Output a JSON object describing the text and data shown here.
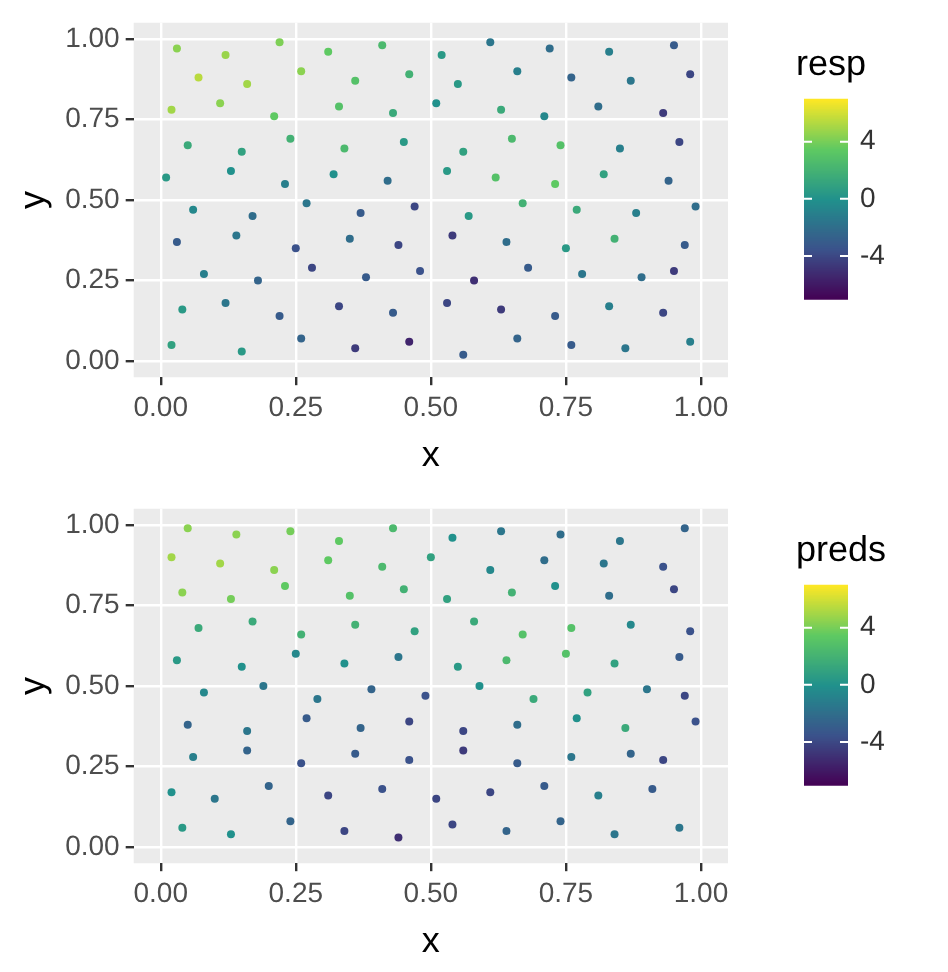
{
  "chart_data": [
    {
      "type": "scatter",
      "xlabel": "x",
      "ylabel": "y",
      "clabel": "resp",
      "marker": "circle",
      "grid": true,
      "xlim": [
        -0.05,
        1.05
      ],
      "ylim": [
        -0.05,
        1.05
      ],
      "xticks": [
        {
          "value": 0,
          "label": "0.00"
        },
        {
          "value": 0.25,
          "label": "0.25"
        },
        {
          "value": 0.5,
          "label": "0.50"
        },
        {
          "value": 0.75,
          "label": "0.75"
        },
        {
          "value": 1,
          "label": "1.00"
        }
      ],
      "yticks": [
        {
          "value": 0,
          "label": "0.00"
        },
        {
          "value": 0.25,
          "label": "0.25"
        },
        {
          "value": 0.5,
          "label": "0.50"
        },
        {
          "value": 0.75,
          "label": "0.75"
        },
        {
          "value": 1,
          "label": "1.00"
        }
      ],
      "clim": [
        -7,
        7
      ],
      "cticks": [
        4,
        0,
        -4
      ],
      "x": [
        0.03,
        0.12,
        0.22,
        0.31,
        0.41,
        0.52,
        0.61,
        0.72,
        0.83,
        0.95,
        0.07,
        0.16,
        0.26,
        0.36,
        0.46,
        0.55,
        0.66,
        0.76,
        0.87,
        0.98,
        0.02,
        0.11,
        0.21,
        0.33,
        0.43,
        0.51,
        0.63,
        0.71,
        0.81,
        0.93,
        0.05,
        0.15,
        0.24,
        0.34,
        0.45,
        0.56,
        0.65,
        0.74,
        0.85,
        0.96,
        0.01,
        0.13,
        0.23,
        0.32,
        0.42,
        0.53,
        0.62,
        0.73,
        0.82,
        0.94,
        0.06,
        0.17,
        0.27,
        0.37,
        0.47,
        0.57,
        0.67,
        0.77,
        0.88,
        0.99,
        0.03,
        0.14,
        0.25,
        0.35,
        0.44,
        0.54,
        0.64,
        0.75,
        0.84,
        0.97,
        0.08,
        0.18,
        0.28,
        0.38,
        0.48,
        0.58,
        0.68,
        0.78,
        0.89,
        0.95,
        0.04,
        0.12,
        0.22,
        0.33,
        0.43,
        0.53,
        0.63,
        0.73,
        0.83,
        0.93,
        0.02,
        0.15,
        0.26,
        0.36,
        0.46,
        0.56,
        0.66,
        0.76,
        0.86,
        0.98
      ],
      "values": [
        0.97,
        0.95,
        0.99,
        0.96,
        0.98,
        0.95,
        0.99,
        0.97,
        0.96,
        0.98,
        0.88,
        0.86,
        0.9,
        0.87,
        0.89,
        0.86,
        0.9,
        0.88,
        0.87,
        0.89,
        0.78,
        0.8,
        0.76,
        0.79,
        0.77,
        0.8,
        0.78,
        0.76,
        0.79,
        0.77,
        0.67,
        0.65,
        0.69,
        0.66,
        0.68,
        0.65,
        0.69,
        0.67,
        0.66,
        0.68,
        0.57,
        0.59,
        0.55,
        0.58,
        0.56,
        0.59,
        0.57,
        0.55,
        0.58,
        0.56,
        0.47,
        0.45,
        0.49,
        0.46,
        0.48,
        0.45,
        0.49,
        0.47,
        0.46,
        0.48,
        0.37,
        0.39,
        0.35,
        0.38,
        0.36,
        0.39,
        0.37,
        0.35,
        0.38,
        0.36,
        0.27,
        0.25,
        0.29,
        0.26,
        0.28,
        0.25,
        0.29,
        0.27,
        0.26,
        0.28,
        0.16,
        0.18,
        0.14,
        0.17,
        0.15,
        0.18,
        0.16,
        0.14,
        0.17,
        0.15,
        0.05,
        0.03,
        0.07,
        0.04,
        0.06,
        0.02,
        0.07,
        0.05,
        0.04,
        0.06
      ],
      "cvalues": [
        4.5,
        4.8,
        4.2,
        3.5,
        2.5,
        0.5,
        -1.5,
        -2,
        -1,
        -3,
        5.5,
        5,
        4.5,
        3,
        2,
        0.5,
        -1,
        -2.5,
        -1.5,
        -4,
        5,
        4.5,
        3.5,
        3,
        1.5,
        0,
        1.5,
        -0.5,
        -2,
        -4.5,
        1.5,
        1,
        2,
        2.5,
        0.5,
        1,
        2.5,
        3,
        -1,
        -4,
        0.5,
        0,
        -1,
        0,
        -2,
        0.5,
        3,
        3.5,
        1,
        -2.5,
        -0.5,
        -2,
        -1.5,
        -3,
        -4,
        0.5,
        2,
        1.5,
        -1,
        -2,
        -3,
        -1.5,
        -3.5,
        -2,
        -4,
        -4.5,
        -2,
        0.5,
        2,
        -3,
        -1,
        -2.5,
        -4,
        -3,
        -3.5,
        -5,
        -3,
        -1.5,
        -2,
        -4.5,
        0.5,
        -1.5,
        -3,
        -4,
        -3,
        -4,
        -4.5,
        -3,
        -1,
        -4,
        1,
        0.5,
        -2.5,
        -4.5,
        -5.5,
        -3,
        -2.5,
        -3,
        -1.5,
        -1
      ]
    },
    {
      "type": "scatter",
      "xlabel": "x",
      "ylabel": "y",
      "clabel": "preds",
      "marker": "circle",
      "grid": true,
      "xlim": [
        -0.05,
        1.05
      ],
      "ylim": [
        -0.05,
        1.05
      ],
      "xticks": [
        {
          "value": 0,
          "label": "0.00"
        },
        {
          "value": 0.25,
          "label": "0.25"
        },
        {
          "value": 0.5,
          "label": "0.50"
        },
        {
          "value": 0.75,
          "label": "0.75"
        },
        {
          "value": 1,
          "label": "1.00"
        }
      ],
      "yticks": [
        {
          "value": 0,
          "label": "0.00"
        },
        {
          "value": 0.25,
          "label": "0.25"
        },
        {
          "value": 0.5,
          "label": "0.50"
        },
        {
          "value": 0.75,
          "label": "0.75"
        },
        {
          "value": 1,
          "label": "1.00"
        }
      ],
      "clim": [
        -7,
        7
      ],
      "cticks": [
        4,
        0,
        -4
      ],
      "x": [
        0.05,
        0.14,
        0.24,
        0.33,
        0.43,
        0.54,
        0.63,
        0.74,
        0.85,
        0.97,
        0.02,
        0.11,
        0.21,
        0.31,
        0.41,
        0.5,
        0.61,
        0.71,
        0.82,
        0.93,
        0.04,
        0.13,
        0.23,
        0.35,
        0.45,
        0.53,
        0.65,
        0.73,
        0.83,
        0.95,
        0.07,
        0.17,
        0.26,
        0.36,
        0.47,
        0.58,
        0.67,
        0.76,
        0.87,
        0.98,
        0.03,
        0.15,
        0.25,
        0.34,
        0.44,
        0.55,
        0.64,
        0.75,
        0.84,
        0.96,
        0.08,
        0.19,
        0.29,
        0.39,
        0.49,
        0.59,
        0.69,
        0.79,
        0.9,
        0.97,
        0.05,
        0.16,
        0.27,
        0.37,
        0.46,
        0.56,
        0.66,
        0.77,
        0.86,
        0.99,
        0.06,
        0.16,
        0.26,
        0.36,
        0.46,
        0.56,
        0.66,
        0.76,
        0.87,
        0.93,
        0.02,
        0.1,
        0.2,
        0.31,
        0.41,
        0.51,
        0.61,
        0.71,
        0.81,
        0.91,
        0.04,
        0.13,
        0.24,
        0.34,
        0.44,
        0.54,
        0.64,
        0.74,
        0.84,
        0.96
      ],
      "values": [
        0.99,
        0.97,
        0.98,
        0.95,
        0.99,
        0.96,
        0.98,
        0.97,
        0.95,
        0.99,
        0.9,
        0.88,
        0.86,
        0.89,
        0.87,
        0.9,
        0.86,
        0.89,
        0.88,
        0.87,
        0.79,
        0.77,
        0.81,
        0.78,
        0.8,
        0.77,
        0.79,
        0.81,
        0.78,
        0.8,
        0.68,
        0.7,
        0.66,
        0.69,
        0.67,
        0.7,
        0.66,
        0.68,
        0.69,
        0.67,
        0.58,
        0.56,
        0.6,
        0.57,
        0.59,
        0.56,
        0.58,
        0.6,
        0.57,
        0.59,
        0.48,
        0.5,
        0.46,
        0.49,
        0.47,
        0.5,
        0.46,
        0.48,
        0.49,
        0.47,
        0.38,
        0.36,
        0.4,
        0.37,
        0.39,
        0.36,
        0.38,
        0.4,
        0.37,
        0.39,
        0.28,
        0.3,
        0.26,
        0.29,
        0.27,
        0.3,
        0.26,
        0.28,
        0.29,
        0.27,
        0.17,
        0.15,
        0.19,
        0.16,
        0.18,
        0.15,
        0.17,
        0.19,
        0.16,
        0.18,
        0.06,
        0.04,
        0.08,
        0.05,
        0.03,
        0.07,
        0.05,
        0.08,
        0.04,
        0.06
      ],
      "cvalues": [
        4.5,
        4.5,
        4,
        3.5,
        2.5,
        0,
        -1.5,
        -2,
        -1.5,
        -2.5,
        5,
        5,
        4.5,
        3.5,
        2.5,
        1,
        -0.5,
        -2,
        -1.5,
        -3.5,
        4.5,
        4,
        3.5,
        3,
        2,
        1,
        2,
        0,
        -2,
        -4,
        1.5,
        1.5,
        2,
        2,
        1,
        1.5,
        3,
        3,
        -0.5,
        -3.5,
        0.5,
        0,
        -0.5,
        0,
        -1.5,
        0.5,
        2.5,
        3,
        1,
        -3,
        -0.5,
        -1.5,
        -1.5,
        -2.5,
        -3.5,
        0,
        1.5,
        1,
        -1.5,
        -4,
        -2.5,
        -1.5,
        -3,
        -2.5,
        -4,
        -4,
        -2,
        0,
        1.5,
        -3.5,
        -1,
        -2.5,
        -3.5,
        -3,
        -3.5,
        -4.5,
        -3,
        -1.5,
        -2.5,
        -4,
        0,
        -1.5,
        -2.5,
        -4,
        -3.5,
        -4,
        -4,
        -3,
        -1,
        -3,
        0.5,
        0,
        -2.5,
        -4,
        -5,
        -4,
        -2.5,
        -2.5,
        -1.5,
        -1.5
      ]
    }
  ]
}
